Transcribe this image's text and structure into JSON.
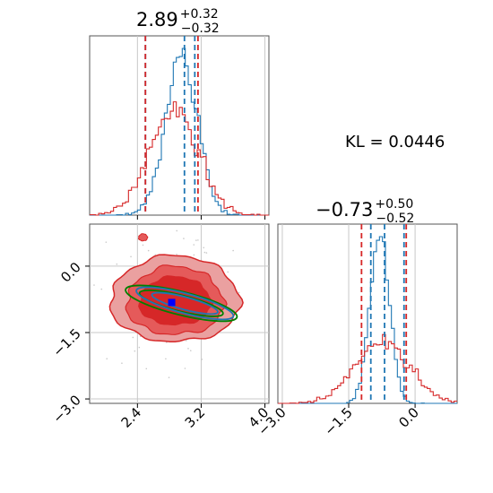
{
  "chart_data": {
    "type": "corner",
    "grid": true,
    "kl_label": "KL = 0.0446",
    "params": [
      {
        "title": {
          "value": "2.89",
          "upper": "+0.32",
          "lower": "−0.32"
        },
        "range": [
          1.8,
          4.05
        ],
        "ticks": [
          {
            "v": 2.4,
            "label": "2.4"
          },
          {
            "v": 3.2,
            "label": "3.2"
          },
          {
            "v": 4.0,
            "label": "4.0"
          }
        ],
        "blue_quantiles": [
          2.5,
          2.99,
          3.12
        ],
        "red_quantiles": [
          2.5,
          3.16
        ]
      },
      {
        "title": {
          "value": "−0.73",
          "upper": "+0.50",
          "lower": "−0.52"
        },
        "range": [
          -3.1,
          0.95
        ],
        "ticks": [
          {
            "v": -3.0,
            "label": "−3.0"
          },
          {
            "v": -1.5,
            "label": "−1.5"
          },
          {
            "v": 0.0,
            "label": "0.0"
          }
        ],
        "blue_quantiles": [
          -1.0,
          -0.69,
          -0.25
        ],
        "red_quantiles": [
          -1.21,
          -0.2
        ]
      }
    ],
    "series": [
      {
        "color": "#1f77b4",
        "mean": [
          2.95,
          -0.8
        ],
        "std": [
          0.2,
          0.22
        ]
      },
      {
        "color": "#d62728",
        "mean": [
          2.85,
          -0.75
        ],
        "std": [
          0.3,
          0.6
        ]
      }
    ],
    "true_value": [
      2.83,
      -0.82
    ],
    "true_marker_color": "#0000ff",
    "contour_colors": {
      "red": "#d62728",
      "green": "#008000",
      "blue": "#1f77b4"
    }
  }
}
